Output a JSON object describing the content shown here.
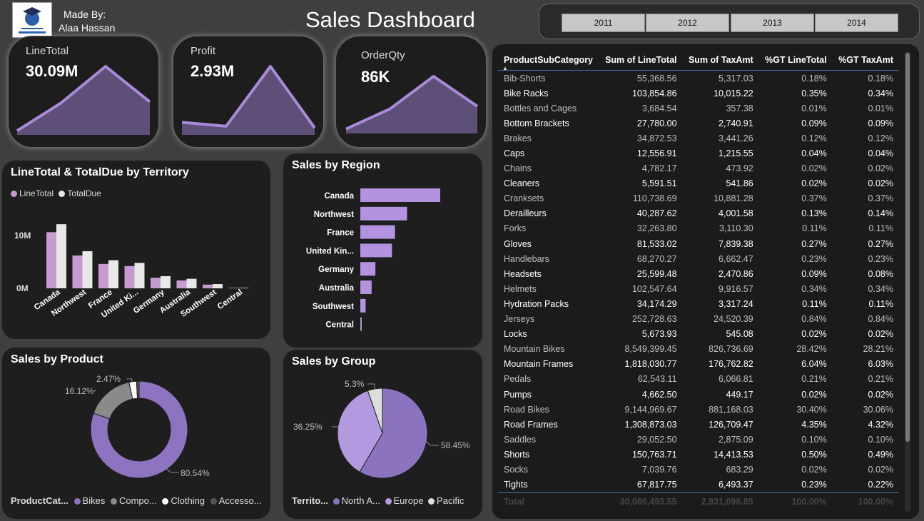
{
  "header": {
    "title": "Sales Dashboard",
    "made_by_label": "Made By:",
    "author": "Alaa Hassan"
  },
  "years": [
    "2011",
    "2012",
    "2013",
    "2014"
  ],
  "kpis": [
    {
      "label": "LineTotal",
      "value": "30.09M"
    },
    {
      "label": "Profit",
      "value": "2.93M"
    },
    {
      "label": "OrderQty",
      "value": "86K"
    }
  ],
  "colors": {
    "line_total": "#c79ad1",
    "total_due": "#e8e8e8",
    "bar": "#b392e0",
    "bikes": "#8e73c0",
    "components": "#8a8a8a",
    "clothing": "#ffffff",
    "accessories": "#555555",
    "north_america": "#8b73bf",
    "europe": "#b39ae0",
    "pacific": "#dddddd"
  },
  "territory_chart": {
    "title": "LineTotal & TotalDue by Territory",
    "legend": [
      "LineTotal",
      "TotalDue"
    ],
    "y_ticks": [
      "10M",
      "0M"
    ]
  },
  "region_chart": {
    "title": "Sales by Region"
  },
  "product_chart": {
    "title": "Sales by Product",
    "legend_title": "ProductCat...",
    "legend": [
      "Bikes",
      "Compo...",
      "Clothing",
      "Accesso..."
    ],
    "labels": [
      "80.54%",
      "16.12%",
      "2.47%"
    ]
  },
  "group_chart": {
    "title": "Sales by Group",
    "legend_title": "Territo...",
    "legend": [
      "North A...",
      "Europe",
      "Pacific"
    ],
    "labels": [
      "58.45%",
      "36.25%",
      "5.3%"
    ]
  },
  "table": {
    "columns": [
      "ProductSubCategory",
      "Sum of LineTotal",
      "Sum of TaxAmt",
      "%GT LineTotal",
      "%GT TaxAmt"
    ],
    "rows": [
      [
        "Bib-Shorts",
        "55,368.56",
        "5,317.03",
        "0.18%",
        "0.18%"
      ],
      [
        "Bike Racks",
        "103,854.86",
        "10,015.22",
        "0.35%",
        "0.34%"
      ],
      [
        "Bottles and Cages",
        "3,684.54",
        "357.38",
        "0.01%",
        "0.01%"
      ],
      [
        "Bottom Brackets",
        "27,780.00",
        "2,740.91",
        "0.09%",
        "0.09%"
      ],
      [
        "Brakes",
        "34,872.53",
        "3,441.26",
        "0.12%",
        "0.12%"
      ],
      [
        "Caps",
        "12,556.91",
        "1,215.55",
        "0.04%",
        "0.04%"
      ],
      [
        "Chains",
        "4,782.17",
        "473.92",
        "0.02%",
        "0.02%"
      ],
      [
        "Cleaners",
        "5,591.51",
        "541.86",
        "0.02%",
        "0.02%"
      ],
      [
        "Cranksets",
        "110,738.69",
        "10,881.28",
        "0.37%",
        "0.37%"
      ],
      [
        "Derailleurs",
        "40,287.62",
        "4,001.58",
        "0.13%",
        "0.14%"
      ],
      [
        "Forks",
        "32,263.80",
        "3,110.30",
        "0.11%",
        "0.11%"
      ],
      [
        "Gloves",
        "81,533.02",
        "7,839.38",
        "0.27%",
        "0.27%"
      ],
      [
        "Handlebars",
        "68,270.27",
        "6,662.47",
        "0.23%",
        "0.23%"
      ],
      [
        "Headsets",
        "25,599.48",
        "2,470.86",
        "0.09%",
        "0.08%"
      ],
      [
        "Helmets",
        "102,547.64",
        "9,916.57",
        "0.34%",
        "0.34%"
      ],
      [
        "Hydration Packs",
        "34,174.29",
        "3,317.24",
        "0.11%",
        "0.11%"
      ],
      [
        "Jerseys",
        "252,728.63",
        "24,520.39",
        "0.84%",
        "0.84%"
      ],
      [
        "Locks",
        "5,673.93",
        "545.08",
        "0.02%",
        "0.02%"
      ],
      [
        "Mountain Bikes",
        "8,549,399.45",
        "826,736.69",
        "28.42%",
        "28.21%"
      ],
      [
        "Mountain Frames",
        "1,818,030.77",
        "176,762.82",
        "6.04%",
        "6.03%"
      ],
      [
        "Pedals",
        "62,543.11",
        "6,066.81",
        "0.21%",
        "0.21%"
      ],
      [
        "Pumps",
        "4,662.50",
        "449.17",
        "0.02%",
        "0.02%"
      ],
      [
        "Road Bikes",
        "9,144,969.67",
        "881,168.03",
        "30.40%",
        "30.06%"
      ],
      [
        "Road Frames",
        "1,308,873.03",
        "126,709.47",
        "4.35%",
        "4.32%"
      ],
      [
        "Saddles",
        "29,052.50",
        "2,875.09",
        "0.10%",
        "0.10%"
      ],
      [
        "Shorts",
        "150,763.71",
        "14,413.53",
        "0.50%",
        "0.49%"
      ],
      [
        "Socks",
        "7,039.76",
        "683.29",
        "0.02%",
        "0.02%"
      ],
      [
        "Tights",
        "67,817.75",
        "6,493.37",
        "0.23%",
        "0.22%"
      ]
    ],
    "total": [
      "Total",
      "30,086,493.55",
      "2,931,096.85",
      "100.00%",
      "100.00%"
    ]
  },
  "chart_data": [
    {
      "type": "area",
      "title": "LineTotal",
      "x": [
        "2011",
        "2012",
        "2013",
        "2014"
      ],
      "values": [
        0.5,
        3.9,
        8.3,
        4.0
      ]
    },
    {
      "type": "area",
      "title": "Profit",
      "x": [
        "2011",
        "2012",
        "2013",
        "2014"
      ],
      "values": [
        1.6,
        1.1,
        8.7,
        0.9
      ]
    },
    {
      "type": "area",
      "title": "OrderQty",
      "x": [
        "2011",
        "2012",
        "2013",
        "2014"
      ],
      "values": [
        0.5,
        2.7,
        6.3,
        3.0
      ]
    },
    {
      "type": "bar",
      "title": "LineTotal & TotalDue by Territory",
      "categories": [
        "Canada",
        "Northwest",
        "France",
        "United Ki...",
        "Germany",
        "Australia",
        "Southwest",
        "Central"
      ],
      "series": [
        {
          "name": "LineTotal",
          "values": [
            10.6,
            6.2,
            4.6,
            4.2,
            2.0,
            1.5,
            0.7,
            0.1
          ]
        },
        {
          "name": "TotalDue",
          "values": [
            12.1,
            7.0,
            5.3,
            4.8,
            2.3,
            1.8,
            0.8,
            0.1
          ]
        }
      ],
      "ylim": [
        0,
        14
      ]
    },
    {
      "type": "bar",
      "title": "Sales by Region",
      "categories": [
        "Canada",
        "Northwest",
        "France",
        "United Kin...",
        "Germany",
        "Australia",
        "Southwest",
        "Central"
      ],
      "values": [
        10.6,
        6.2,
        4.6,
        4.2,
        2.0,
        1.5,
        0.7,
        0.1
      ]
    },
    {
      "type": "pie",
      "title": "Sales by Product",
      "categories": [
        "Bikes",
        "Components",
        "Clothing",
        "Accessories"
      ],
      "values": [
        80.54,
        16.12,
        2.47,
        0.87
      ]
    },
    {
      "type": "pie",
      "title": "Sales by Group",
      "categories": [
        "North America",
        "Europe",
        "Pacific"
      ],
      "values": [
        58.45,
        36.25,
        5.3
      ]
    }
  ]
}
